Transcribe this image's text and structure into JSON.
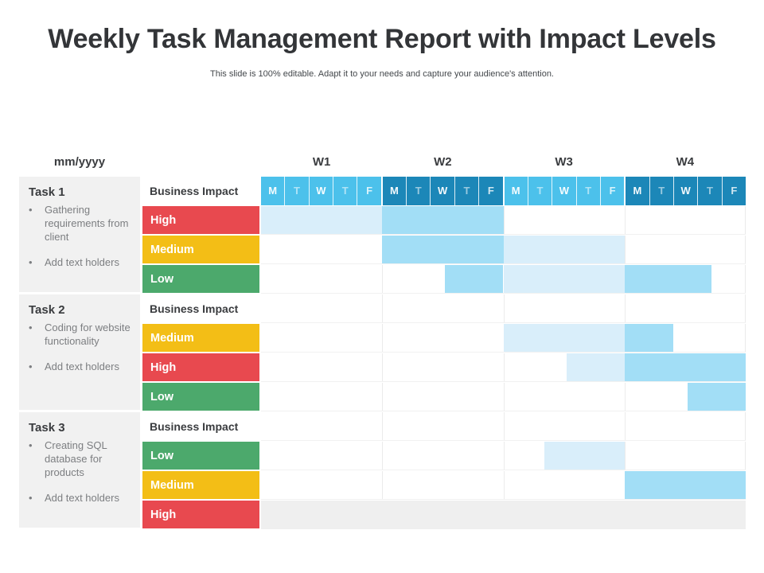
{
  "slide": {
    "title": "Weekly Task Management Report with Impact Levels",
    "subtitle": "This slide is 100% editable. Adapt it to your needs and capture your audience's attention."
  },
  "table": {
    "date_header": "mm/yyyy",
    "impact_header": "Business Impact",
    "colors": {
      "impact": {
        "High": "#E8494F",
        "Medium": "#F3BE16",
        "Low": "#4CA96C"
      },
      "day_week_light": "#4CC1EB",
      "day_week_dark": "#1C87B8",
      "sidebar_bg": "#F1F1F1",
      "disabled_row_bg": "#EFEFEF"
    },
    "tasks": [
      {
        "name": "Task 1",
        "bullets": [
          "Gathering requirements from client",
          "Add text holders"
        ]
      },
      {
        "name": "Task 2",
        "bullets": [
          "Coding for website functionality",
          "Add text holders"
        ]
      },
      {
        "name": "Task 3",
        "bullets": [
          "Creating SQL database for products",
          "Add text holders"
        ]
      }
    ]
  },
  "chart_data": {
    "type": "heatmap",
    "title": "Weekly Task Management Report with Impact Levels",
    "x_axis": {
      "weeks": [
        "W1",
        "W2",
        "W3",
        "W4"
      ],
      "days": [
        "M",
        "T",
        "W",
        "T",
        "F"
      ],
      "total_day_slots": 20
    },
    "shade_colors": {
      "light": "#D9EEFA",
      "dark": "#A2DEF6"
    },
    "rows": [
      {
        "task": "Task 1",
        "impact": "High",
        "spans": [
          {
            "start": 0,
            "end": 5,
            "shade": "light"
          },
          {
            "start": 5,
            "end": 10,
            "shade": "dark"
          }
        ]
      },
      {
        "task": "Task 1",
        "impact": "Medium",
        "spans": [
          {
            "start": 5,
            "end": 10,
            "shade": "dark"
          },
          {
            "start": 10,
            "end": 15,
            "shade": "light"
          }
        ]
      },
      {
        "task": "Task 1",
        "impact": "Low",
        "spans": [
          {
            "start": 7.6,
            "end": 10,
            "shade": "dark"
          },
          {
            "start": 10,
            "end": 15,
            "shade": "light"
          },
          {
            "start": 15,
            "end": 18.6,
            "shade": "dark"
          }
        ]
      },
      {
        "task": "Task 2",
        "impact": "Medium",
        "spans": [
          {
            "start": 10,
            "end": 15,
            "shade": "light"
          },
          {
            "start": 15,
            "end": 17,
            "shade": "dark"
          }
        ]
      },
      {
        "task": "Task 2",
        "impact": "High",
        "spans": [
          {
            "start": 12.6,
            "end": 15,
            "shade": "light"
          },
          {
            "start": 15,
            "end": 20,
            "shade": "dark"
          }
        ]
      },
      {
        "task": "Task 2",
        "impact": "Low",
        "spans": [
          {
            "start": 17.6,
            "end": 20,
            "shade": "dark"
          }
        ]
      },
      {
        "task": "Task 3",
        "impact": "Low",
        "spans": [
          {
            "start": 11.7,
            "end": 15,
            "shade": "light"
          }
        ]
      },
      {
        "task": "Task 3",
        "impact": "Medium",
        "spans": [
          {
            "start": 15,
            "end": 20,
            "shade": "dark"
          }
        ]
      },
      {
        "task": "Task 3",
        "impact": "High",
        "disabled_row": true,
        "spans": []
      }
    ]
  }
}
